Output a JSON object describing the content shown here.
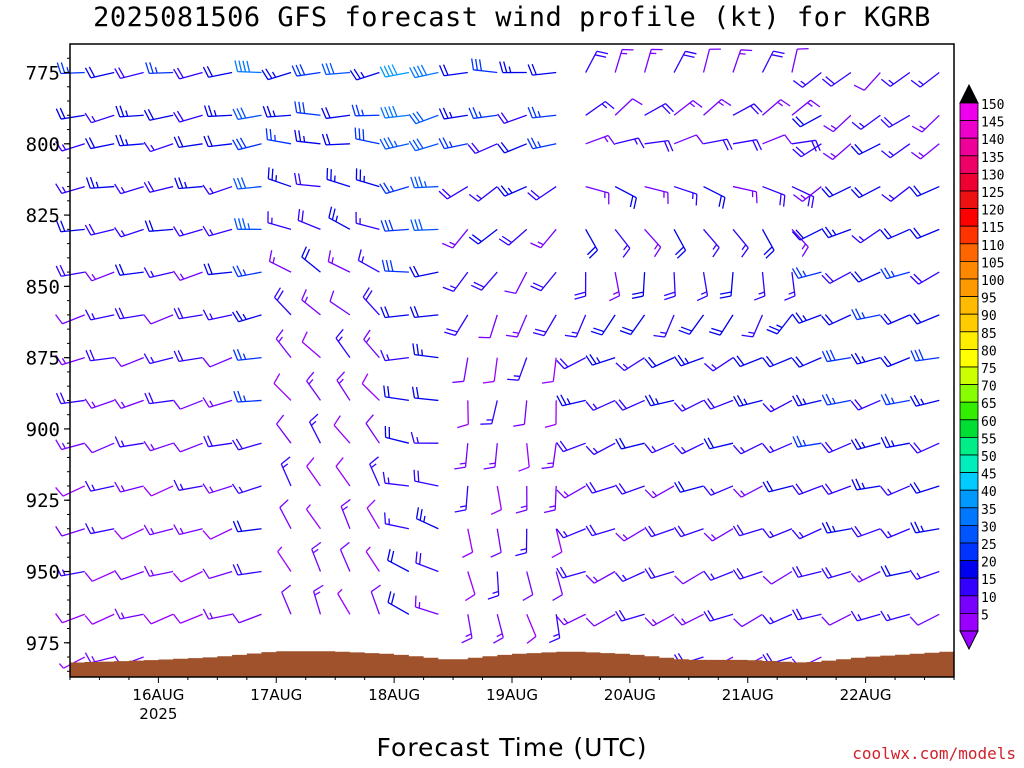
{
  "chart_data": {
    "type": "wind-barb-profile",
    "title": "2025081506 GFS forecast wind profile (kt) for KGRB",
    "xlabel": "Forecast Time (UTC)",
    "ylabel": "",
    "y_axis": {
      "inverted": true,
      "range": [
        765,
        987
      ],
      "ticks": [
        775,
        800,
        825,
        850,
        875,
        900,
        925,
        950,
        975
      ],
      "unit": "hPa"
    },
    "x_axis": {
      "range": [
        "2025-08-15T06",
        "2025-08-22T18"
      ],
      "ticks": [
        {
          "label": "16AUG",
          "sub": "2025",
          "date": "2025-08-16T00"
        },
        {
          "label": "17AUG",
          "sub": "",
          "date": "2025-08-17T00"
        },
        {
          "label": "18AUG",
          "sub": "",
          "date": "2025-08-18T00"
        },
        {
          "label": "19AUG",
          "sub": "",
          "date": "2025-08-19T00"
        },
        {
          "label": "20AUG",
          "sub": "",
          "date": "2025-08-20T00"
        },
        {
          "label": "21AUG",
          "sub": "",
          "date": "2025-08-21T00"
        },
        {
          "label": "22AUG",
          "sub": "",
          "date": "2025-08-22T00"
        }
      ]
    },
    "grid": false,
    "pressure_levels": [
      775,
      790,
      800,
      815,
      830,
      845,
      860,
      875,
      890,
      905,
      920,
      935,
      950,
      965,
      980
    ],
    "surface_color": "#a0522d",
    "surface_pressure": [
      {
        "time": "2025-08-15T06",
        "p": 982
      },
      {
        "time": "2025-08-16T00",
        "p": 981
      },
      {
        "time": "2025-08-16T12",
        "p": 980
      },
      {
        "time": "2025-08-17T00",
        "p": 978
      },
      {
        "time": "2025-08-17T12",
        "p": 978
      },
      {
        "time": "2025-08-18T00",
        "p": 979
      },
      {
        "time": "2025-08-18T12",
        "p": 981
      },
      {
        "time": "2025-08-19T00",
        "p": 979
      },
      {
        "time": "2025-08-19T12",
        "p": 978
      },
      {
        "time": "2025-08-20T00",
        "p": 979
      },
      {
        "time": "2025-08-20T12",
        "p": 981
      },
      {
        "time": "2025-08-21T00",
        "p": 981
      },
      {
        "time": "2025-08-21T12",
        "p": 982
      },
      {
        "time": "2025-08-22T00",
        "p": 980
      },
      {
        "time": "2025-08-22T18",
        "p": 978
      }
    ],
    "wind_regimes": [
      {
        "start": "2025-08-15T06",
        "end": "2025-08-16T18",
        "dir": [
          260,
          255,
          250
        ],
        "speed": [
          22,
          15,
          10
        ]
      },
      {
        "start": "2025-08-16T18",
        "end": "2025-08-17T00",
        "dir": [
          265,
          260,
          255
        ],
        "speed": [
          36,
          25,
          14
        ]
      },
      {
        "start": "2025-08-17T00",
        "end": "2025-08-18T00",
        "dir": [
          260,
          320,
          340
        ],
        "speed": [
          28,
          12,
          10
        ]
      },
      {
        "start": "2025-08-18T00",
        "end": "2025-08-18T12",
        "dir": [
          255,
          270,
          300
        ],
        "speed": [
          38,
          20,
          18
        ]
      },
      {
        "start": "2025-08-18T12",
        "end": "2025-08-19T12",
        "dir": [
          270,
          190,
          160
        ],
        "speed": [
          25,
          12,
          12
        ]
      },
      {
        "start": "2025-08-19T12",
        "end": "2025-08-21T12",
        "dir": [
          20,
          250,
          245
        ],
        "speed": [
          15,
          20,
          14
        ]
      },
      {
        "start": "2025-08-21T12",
        "end": "2025-08-22T18",
        "dir": [
          230,
          255,
          250
        ],
        "speed": [
          15,
          25,
          14
        ]
      }
    ],
    "colorbar": {
      "labels": [
        "150",
        "145",
        "140",
        "135",
        "130",
        "125",
        "120",
        "115",
        "110",
        "105",
        "100",
        "95",
        "90",
        "85",
        "80",
        "75",
        "70",
        "65",
        "60",
        "55",
        "50",
        "45",
        "40",
        "35",
        "30",
        "25",
        "20",
        "15",
        "10",
        "5"
      ],
      "colors": [
        "#ee00ee",
        "#ee00cc",
        "#ee0099",
        "#ee0066",
        "#ee0033",
        "#ee1111",
        "#ff0000",
        "#ff3300",
        "#ff6600",
        "#ff8800",
        "#ff9900",
        "#ffbb00",
        "#ffcc00",
        "#ffee00",
        "#ffff00",
        "#ccff00",
        "#88ff00",
        "#33ee00",
        "#00dd33",
        "#00ee88",
        "#00eebb",
        "#00ccff",
        "#0099ff",
        "#0077ff",
        "#0055ff",
        "#0033ff",
        "#0000ee",
        "#3300ff",
        "#7700ff",
        "#9900ff"
      ],
      "arrow_top": "#000000",
      "arrow_bottom": "#9900ff"
    }
  },
  "credit": "coolwx.com/models"
}
